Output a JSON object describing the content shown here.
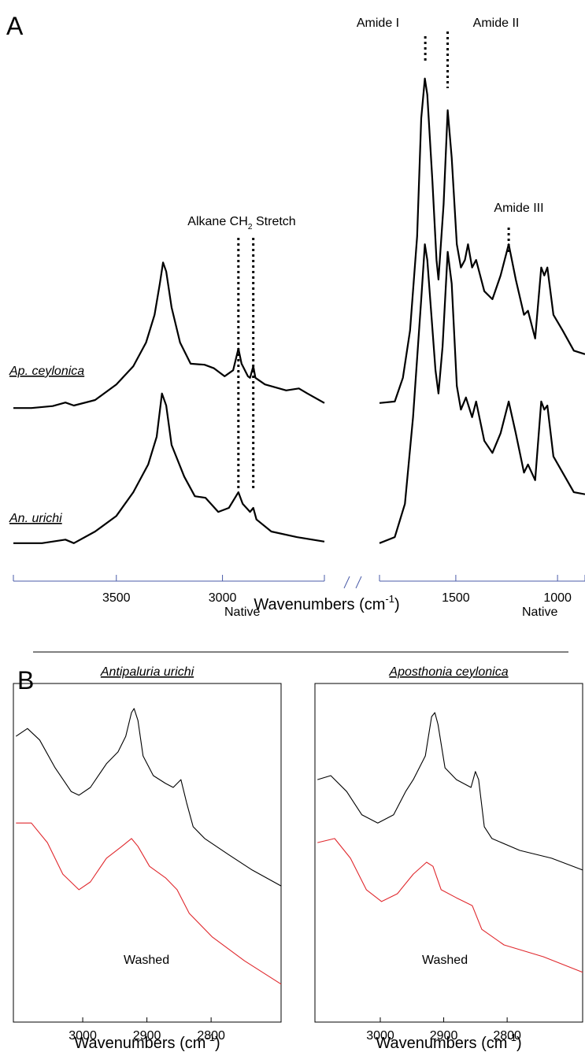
{
  "panel_labels": [
    "A",
    "B"
  ],
  "chart_data": [
    {
      "type": "line",
      "xlim": [
        3985,
        2520
      ],
      "ylim": [
        0,
        100
      ],
      "xticks": [
        3500,
        3000
      ],
      "axis_color": "#4a5ba8",
      "x_label": {
        "text": "Wavenumbers (cm",
        "sup": "-1",
        "tail": ")"
      },
      "series": [
        {
          "name": "Ap. ceylonica",
          "color": "#000000",
          "x": [
            3985,
            3900,
            3800,
            3740,
            3700,
            3600,
            3500,
            3420,
            3360,
            3320,
            3295,
            3280,
            3265,
            3240,
            3200,
            3150,
            3085,
            3040,
            2990,
            2950,
            2925,
            2910,
            2880,
            2870,
            2855,
            2845,
            2800,
            2700,
            2640,
            2600,
            2520
          ],
          "values": [
            28.4,
            28.4,
            28.8,
            29.5,
            28.9,
            30.0,
            33.1,
            36.7,
            41.4,
            46.9,
            53.1,
            57.3,
            55.5,
            48.4,
            41.4,
            37.2,
            37.0,
            36.3,
            34.7,
            35.9,
            40.2,
            37.2,
            34.7,
            34.4,
            36.7,
            34.4,
            33.1,
            31.9,
            32.3,
            31.3,
            29.4
          ]
        },
        {
          "name": "An. urichi",
          "color": "#000000",
          "x": [
            3985,
            3850,
            3740,
            3700,
            3600,
            3500,
            3420,
            3350,
            3310,
            3285,
            3265,
            3240,
            3180,
            3130,
            3080,
            3020,
            2970,
            2925,
            2905,
            2870,
            2855,
            2840,
            2770,
            2650,
            2520
          ],
          "values": [
            1.6,
            1.6,
            2.3,
            1.6,
            3.9,
            7.0,
            11.7,
            17.2,
            22.7,
            31.3,
            28.9,
            21.1,
            14.8,
            10.9,
            10.6,
            7.8,
            8.6,
            11.7,
            9.4,
            7.8,
            8.6,
            6.3,
            3.9,
            2.8,
            1.9
          ]
        }
      ],
      "annotations": [
        {
          "label": {
            "text": "Alkane CH",
            "sub": "2",
            "tail": " Stretch"
          },
          "x": [
            2925,
            2855
          ]
        }
      ]
    },
    {
      "type": "line",
      "xlim": [
        1875,
        865
      ],
      "ylim": [
        0,
        100
      ],
      "xticks": [
        1500,
        1000
      ],
      "axis_color": "#4a5ba8",
      "series": [
        {
          "color": "#000000",
          "x": [
            1875,
            1800,
            1760,
            1725,
            1690,
            1670,
            1652,
            1640,
            1615,
            1595,
            1585,
            1560,
            1540,
            1520,
            1495,
            1475,
            1455,
            1440,
            1420,
            1400,
            1360,
            1320,
            1280,
            1240,
            1205,
            1165,
            1145,
            1110,
            1080,
            1065,
            1050,
            1020,
            975,
            920,
            865
          ],
          "values": [
            29.4,
            29.7,
            34.4,
            43.8,
            62.5,
            85.9,
            93.8,
            90.6,
            73.4,
            57.8,
            53.9,
            68.8,
            87.5,
            78.1,
            60.9,
            56.3,
            57.8,
            60.9,
            56.3,
            57.8,
            51.6,
            50.0,
            54.7,
            60.9,
            53.9,
            46.9,
            47.7,
            42.2,
            56.3,
            54.7,
            56.3,
            46.9,
            43.8,
            39.8,
            39.1
          ]
        },
        {
          "color": "#000000",
          "x": [
            1875,
            1800,
            1750,
            1710,
            1670,
            1652,
            1640,
            1600,
            1585,
            1565,
            1540,
            1520,
            1495,
            1475,
            1450,
            1420,
            1400,
            1360,
            1320,
            1280,
            1240,
            1205,
            1165,
            1145,
            1110,
            1080,
            1065,
            1050,
            1020,
            975,
            920,
            865
          ],
          "values": [
            1.6,
            2.8,
            9.4,
            26.6,
            50.0,
            60.9,
            57.8,
            35.9,
            31.3,
            40.6,
            59.4,
            53.1,
            32.8,
            28.1,
            30.5,
            26.6,
            29.7,
            21.9,
            19.5,
            23.4,
            29.7,
            23.4,
            15.6,
            17.2,
            14.1,
            29.7,
            28.1,
            28.9,
            18.8,
            15.6,
            11.7,
            11.3
          ]
        }
      ],
      "annotations": [
        {
          "label": "Amide I",
          "x": 1650
        },
        {
          "label": "Amide II",
          "x": 1540
        },
        {
          "label": "Amide III",
          "x": 1240
        }
      ]
    },
    {
      "type": "line",
      "title": "Antipaluria urichi",
      "xlim": [
        3108,
        2691
      ],
      "ylim": [
        0,
        100
      ],
      "xticks": [
        3000,
        2900,
        2800
      ],
      "frame": true,
      "x_label": {
        "text": "Wavenumbers (cm",
        "sup": "-1",
        "tail": ")"
      },
      "series": [
        {
          "name": "Native",
          "color": "#000000",
          "x": [
            3104,
            3086,
            3067,
            3043,
            3018,
            3006,
            2988,
            2963,
            2945,
            2933,
            2924,
            2920,
            2914,
            2906,
            2890,
            2871,
            2859,
            2847,
            2838,
            2828,
            2810,
            2773,
            2736,
            2691
          ],
          "values": [
            84.4,
            86.7,
            83.3,
            75.1,
            68.1,
            67.0,
            69.3,
            76.3,
            79.8,
            84.4,
            91.4,
            92.6,
            89.1,
            78.6,
            72.8,
            70.5,
            69.3,
            71.6,
            64.7,
            57.7,
            54.2,
            49.5,
            44.9,
            40.2
          ]
        },
        {
          "name": "Washed",
          "color": "#e0282d",
          "x": [
            3104,
            3080,
            3055,
            3031,
            3006,
            2988,
            2963,
            2939,
            2924,
            2914,
            2896,
            2871,
            2853,
            2834,
            2798,
            2748,
            2691
          ],
          "values": [
            58.8,
            58.8,
            53.0,
            43.7,
            39.1,
            41.4,
            48.4,
            51.9,
            54.2,
            51.9,
            46.0,
            42.6,
            39.1,
            32.1,
            25.1,
            18.1,
            11.2
          ]
        }
      ]
    },
    {
      "type": "line",
      "title": "Aposthonia ceylonica",
      "xlim": [
        3103,
        2681
      ],
      "ylim": [
        0,
        100
      ],
      "xticks": [
        3000,
        2900,
        2800
      ],
      "frame": true,
      "x_label": {
        "text": "Wavenumbers (cm",
        "sup": "-1",
        "tail": ")"
      },
      "series": [
        {
          "name": "Native",
          "color": "#000000",
          "x": [
            3099,
            3078,
            3053,
            3029,
            3004,
            2979,
            2960,
            2948,
            2929,
            2919,
            2914,
            2909,
            2898,
            2880,
            2857,
            2850,
            2845,
            2836,
            2824,
            2780,
            2730,
            2681
          ],
          "values": [
            71.6,
            72.8,
            68.1,
            61.2,
            58.8,
            61.2,
            68.1,
            71.6,
            78.6,
            90.2,
            91.4,
            87.9,
            75.1,
            71.6,
            69.3,
            74.0,
            71.6,
            57.7,
            54.2,
            50.7,
            48.4,
            44.9
          ]
        },
        {
          "name": "Washed",
          "color": "#e0282d",
          "x": [
            3099,
            3072,
            3047,
            3022,
            2998,
            2973,
            2948,
            2927,
            2917,
            2904,
            2880,
            2855,
            2840,
            2805,
            2743,
            2681
          ],
          "values": [
            53.0,
            54.2,
            48.4,
            39.1,
            35.6,
            37.9,
            43.7,
            47.2,
            46.0,
            39.1,
            36.7,
            34.4,
            27.4,
            22.8,
            19.3,
            14.7
          ]
        }
      ]
    }
  ]
}
